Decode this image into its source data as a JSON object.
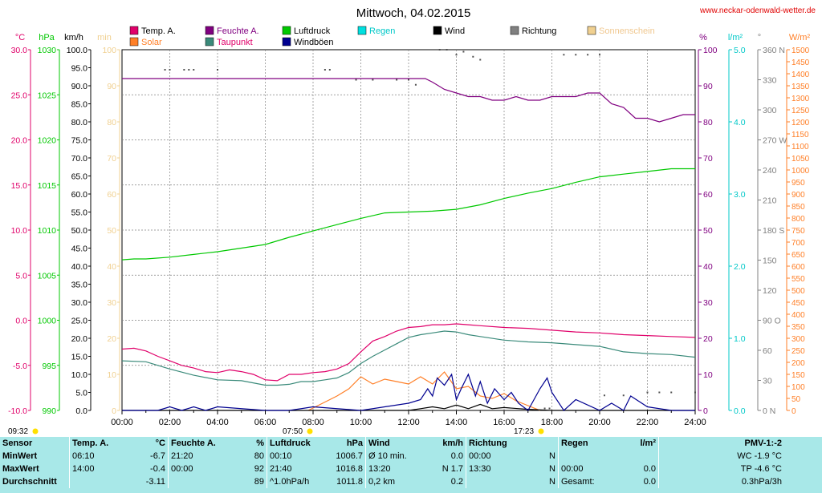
{
  "header": {
    "title": "Mittwoch, 04.02.2015",
    "site": "www.neckar-odenwald-wetter.de"
  },
  "legend": [
    {
      "label": "Temp. A.",
      "color": "#e0006a"
    },
    {
      "label": "Feuchte A.",
      "color": "#800080"
    },
    {
      "label": "Luftdruck",
      "color": "#00c800"
    },
    {
      "label": "Regen",
      "color": "#00e0e0"
    },
    {
      "label": "Wind",
      "color": "#000000"
    },
    {
      "label": "Richtung",
      "color": "#808080"
    },
    {
      "label": "Sonnenschein",
      "color": "#f0d090"
    },
    {
      "label": "Solar",
      "color": "#ff7f27"
    },
    {
      "label": "Taupunkt",
      "color": "#3a8a7a"
    },
    {
      "label": "Windböen",
      "color": "#000090"
    }
  ],
  "axes": {
    "units": [
      "°C",
      "hPa",
      "km/h",
      "min",
      "%",
      "l/m²",
      "°",
      "W/m²"
    ],
    "temp_ticks": [
      "30.0",
      "25.0",
      "20.0",
      "15.0",
      "10.0",
      "5.0",
      "0.0",
      "-5.0",
      "-10.0"
    ],
    "hpa_ticks": [
      "1030",
      "1025",
      "1020",
      "1015",
      "1010",
      "1005",
      "1000",
      "995",
      "990"
    ],
    "kmh_ticks": [
      "100.0",
      "95.0",
      "90.0",
      "85.0",
      "80.0",
      "75.0",
      "70.0",
      "65.0",
      "60.0",
      "55.0",
      "50.0",
      "45.0",
      "40.0",
      "35.0",
      "30.0",
      "25.0",
      "20.0",
      "15.0",
      "10.0",
      "5.0",
      "0.0"
    ],
    "min_ticks": [
      "100",
      "90",
      "80",
      "70",
      "60",
      "50",
      "40",
      "30",
      "20",
      "10",
      "0"
    ],
    "pct_ticks": [
      "100",
      "90",
      "80",
      "70",
      "60",
      "50",
      "40",
      "30",
      "20",
      "10",
      "0"
    ],
    "rain_ticks": [
      "5.0",
      "4.0",
      "3.0",
      "2.0",
      "1.0",
      "0.0"
    ],
    "dir_ticks": [
      "360 N",
      "330",
      "300",
      "270 W",
      "240",
      "210",
      "180 S",
      "150",
      "120",
      "90 O",
      "60",
      "30",
      "0 N"
    ],
    "wm2_ticks": [
      "1500",
      "1450",
      "1400",
      "1350",
      "1300",
      "1250",
      "1200",
      "1150",
      "1100",
      "1050",
      "1000",
      "950",
      "900",
      "850",
      "800",
      "750",
      "700",
      "650",
      "600",
      "550",
      "500",
      "450",
      "400",
      "350",
      "300",
      "250",
      "200",
      "150",
      "100",
      "50",
      "0"
    ],
    "x_ticks": [
      "00:00",
      "02:00",
      "04:00",
      "06:00",
      "08:00",
      "10:00",
      "12:00",
      "14:00",
      "16:00",
      "18:00",
      "20:00",
      "22:00",
      "24:00"
    ],
    "sunrise": "07:50",
    "sunset": "17:23",
    "moon_time": "09:32"
  },
  "colors": {
    "temp_axis": "#e0006a",
    "hpa_axis": "#00c800",
    "min_axis": "#f0d090",
    "pct_axis": "#800080",
    "rain_axis": "#00c8c8",
    "wm2_axis": "#ff7f27",
    "grid": "#808080"
  },
  "chart_data": {
    "type": "line",
    "title": "Mittwoch, 04.02.2015",
    "x_unit": "hours",
    "xlim": [
      0,
      24
    ],
    "series": [
      {
        "name": "Temp. A.",
        "unit": "°C",
        "x": [
          0,
          0.5,
          1,
          1.5,
          2,
          2.5,
          3,
          3.5,
          4,
          4.5,
          5,
          5.5,
          6,
          6.5,
          7,
          7.5,
          8,
          8.5,
          9,
          9.5,
          10,
          10.5,
          11,
          11.5,
          12,
          12.5,
          13,
          13.5,
          14,
          14.5,
          15,
          16,
          17,
          18,
          19,
          20,
          21,
          22,
          23,
          24
        ],
        "values": [
          -3.2,
          -3.1,
          -3.4,
          -4.0,
          -4.5,
          -5.0,
          -5.3,
          -5.7,
          -5.8,
          -5.5,
          -5.7,
          -6.0,
          -6.6,
          -6.7,
          -6.0,
          -6.0,
          -5.8,
          -5.7,
          -5.4,
          -4.8,
          -3.5,
          -2.3,
          -1.8,
          -1.2,
          -0.8,
          -0.7,
          -0.5,
          -0.5,
          -0.4,
          -0.5,
          -0.6,
          -0.8,
          -0.9,
          -1.1,
          -1.3,
          -1.4,
          -1.6,
          -1.7,
          -1.8,
          -1.9
        ]
      },
      {
        "name": "Taupunkt",
        "unit": "°C",
        "x": [
          0,
          1,
          2,
          3,
          4,
          5,
          6,
          6.5,
          7,
          7.5,
          8,
          8.5,
          9,
          9.5,
          10,
          10.5,
          11,
          11.5,
          12,
          12.5,
          13,
          13.5,
          14,
          14.5,
          15,
          16,
          17,
          18,
          19,
          20,
          20.5,
          21,
          22,
          23,
          24
        ],
        "values": [
          -4.5,
          -4.6,
          -5.4,
          -6.1,
          -6.6,
          -6.7,
          -7.2,
          -7.2,
          -7.1,
          -6.8,
          -6.8,
          -6.6,
          -6.4,
          -5.8,
          -4.8,
          -4.0,
          -3.3,
          -2.6,
          -1.9,
          -1.6,
          -1.4,
          -1.2,
          -1.3,
          -1.6,
          -1.8,
          -2.2,
          -2.4,
          -2.5,
          -2.7,
          -2.9,
          -3.2,
          -3.5,
          -3.7,
          -3.8,
          -4.1
        ]
      },
      {
        "name": "Feuchte A.",
        "unit": "%",
        "x": [
          0,
          1,
          2,
          3,
          4,
          5,
          6,
          7,
          8,
          9,
          10,
          11,
          12,
          12.7,
          13,
          13.5,
          14,
          14.5,
          15,
          15.5,
          16,
          16.5,
          17,
          17.5,
          18,
          18.5,
          19,
          19.5,
          20,
          20.5,
          21,
          21.5,
          22,
          22.5,
          23,
          23.5,
          24
        ],
        "values": [
          92,
          92,
          92,
          92,
          92,
          92,
          92,
          92,
          92,
          92,
          92,
          92,
          92,
          92,
          91,
          89,
          88,
          87,
          87,
          86,
          86,
          87,
          86,
          86,
          87,
          87,
          87,
          88,
          88,
          85,
          84,
          81,
          81,
          80,
          81,
          82,
          82
        ]
      },
      {
        "name": "Luftdruck",
        "unit": "hPa",
        "x": [
          0,
          0.5,
          1,
          2,
          3,
          4,
          5,
          6,
          7,
          8,
          9,
          10,
          11,
          12,
          13,
          14,
          15,
          16,
          17,
          18,
          19,
          20,
          21,
          22,
          23,
          24
        ],
        "values": [
          1006.7,
          1006.8,
          1006.8,
          1007.0,
          1007.3,
          1007.6,
          1008.0,
          1008.4,
          1009.2,
          1009.9,
          1010.6,
          1011.3,
          1011.9,
          1012.0,
          1012.1,
          1012.3,
          1012.8,
          1013.5,
          1014.1,
          1014.6,
          1015.3,
          1015.9,
          1016.2,
          1016.5,
          1016.8,
          1016.8
        ]
      },
      {
        "name": "Solar",
        "unit": "W/m²",
        "x": [
          7.8,
          8,
          8.5,
          9,
          9.5,
          10,
          10.5,
          11,
          11.5,
          12,
          12.5,
          13,
          13.5,
          14,
          14.5,
          15,
          15.5,
          16,
          16.5,
          17,
          17.5
        ],
        "values": [
          0,
          10,
          35,
          60,
          90,
          140,
          110,
          130,
          120,
          110,
          140,
          110,
          160,
          90,
          100,
          60,
          50,
          70,
          40,
          20,
          0
        ]
      },
      {
        "name": "Wind",
        "unit": "km/h",
        "x": [
          0,
          6,
          12,
          12.5,
          13,
          13.5,
          14,
          14.5,
          15,
          15.5,
          16,
          17,
          18,
          20,
          22,
          24
        ],
        "values": [
          0,
          0,
          0,
          0.5,
          1,
          0.5,
          1.5,
          0.5,
          1.7,
          0.5,
          0.8,
          0.3,
          0,
          0,
          0,
          0
        ]
      },
      {
        "name": "Windböen",
        "unit": "km/h",
        "x": [
          0,
          1.5,
          2,
          2.5,
          3,
          3.5,
          4,
          6,
          7,
          8,
          10,
          11,
          12,
          12.5,
          12.8,
          13,
          13.2,
          13.5,
          13.8,
          14,
          14.2,
          14.5,
          14.8,
          15,
          15.3,
          15.6,
          16,
          16.3,
          16.6,
          17,
          17.5,
          17.8,
          18,
          18.5,
          19,
          20,
          20.5,
          21,
          21.3,
          22,
          23,
          23.5,
          24
        ],
        "values": [
          0,
          0,
          1,
          0,
          1,
          0,
          1,
          0,
          0,
          1,
          0,
          1,
          2,
          3,
          6,
          4,
          9,
          7,
          10,
          3,
          6,
          10,
          4,
          8,
          2,
          6,
          3,
          5,
          2,
          0,
          6,
          9,
          5,
          0,
          3,
          0,
          2,
          0,
          4,
          1,
          0,
          0,
          0
        ]
      },
      {
        "name": "Richtung",
        "unit": "°",
        "x": [
          1.8,
          2.0,
          2.6,
          2.8,
          3.0,
          4.0,
          8.5,
          8.7,
          9.8,
          10.5,
          11.5,
          12.0,
          12.3,
          13.3,
          13.6,
          14.0,
          14.3,
          14.7,
          15.0,
          17.7,
          17.9,
          18.5,
          19.0,
          19.5,
          20.0,
          20.2,
          21.0,
          22.0,
          22.5,
          23.0,
          24.0
        ],
        "values": [
          340,
          340,
          340,
          340,
          340,
          340,
          340,
          340,
          330,
          330,
          330,
          330,
          325,
          360,
          360,
          355,
          358,
          353,
          350,
          362,
          362,
          355,
          355,
          355,
          355,
          15,
          15,
          18,
          18,
          18,
          18
        ]
      }
    ]
  },
  "info": {
    "headers": {
      "sensor": "Sensor",
      "temp": "Temp. A.",
      "temp_unit": "°C",
      "hum": "Feuchte A.",
      "hum_unit": "%",
      "press": "Luftdruck",
      "press_unit": "hPa",
      "wind": "Wind",
      "wind_unit": "km/h",
      "dir": "Richtung",
      "rain": "Regen",
      "rain_unit": "l/m²",
      "pmv": "PMV-1:-2"
    },
    "min": {
      "label": "MinWert",
      "temp_time": "06:10",
      "temp": "-6.7",
      "hum_time": "21:20",
      "hum": "80",
      "press_time": "00:10",
      "press": "1006.7",
      "wind_label": "Ø 10 min.",
      "wind": "0.0",
      "dir_time": "00:00",
      "dir": "N",
      "rain_time": "",
      "rain": "",
      "pmv": "WC -1.9 °C"
    },
    "max": {
      "label": "MaxWert",
      "temp_time": "14:00",
      "temp": "-0.4",
      "hum_time": "00:00",
      "hum": "92",
      "press_time": "21:40",
      "press": "1016.8",
      "wind_label": "13:20",
      "wind": "N 1.7",
      "dir_time": "13:30",
      "dir": "N",
      "rain_time": "00:00",
      "rain": "0.0",
      "pmv": "TP -4.6 °C"
    },
    "avg": {
      "label": "Durchschnitt",
      "temp": "-3.11",
      "hum": "89",
      "press_time": "^1.0hPa/h",
      "press": "1011.8",
      "wind_label": "0,2 km",
      "wind": "0.2",
      "dir": "N",
      "rain_time": "Gesamt:",
      "rain": "0.0",
      "pmv": "0.3hPa/3h"
    }
  }
}
